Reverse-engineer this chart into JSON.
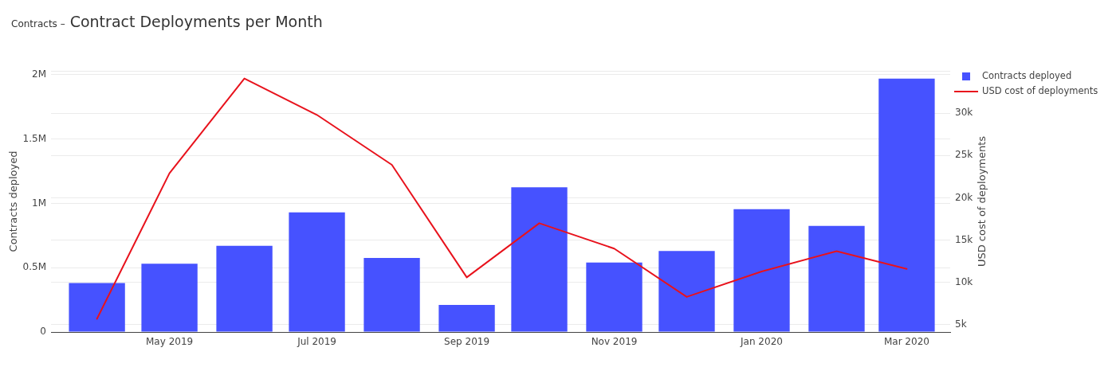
{
  "chart_data": {
    "type": "bar",
    "subtitle": "Contracts –",
    "title": "Contract Deployments per Month",
    "ylabel": "Contracts deployed",
    "y2label": "USD cost of deployments",
    "x": [
      "2019-04",
      "2019-05",
      "2019-06",
      "2019-07",
      "2019-08",
      "2019-09",
      "2019-10",
      "2019-11",
      "2019-12",
      "2020-01",
      "2020-02",
      "2020-03"
    ],
    "series": [
      {
        "name": "Contracts deployed",
        "color": "#4652ff",
        "values": [
          380000,
          530000,
          670000,
          930000,
          575000,
          210000,
          1125000,
          540000,
          630000,
          955000,
          825000,
          1970000
        ]
      },
      {
        "name": "USD cost of deployments",
        "type": "line",
        "axis": "y2",
        "color": "#e8121c",
        "values": [
          5700,
          22900,
          34100,
          29800,
          23900,
          10600,
          17000,
          14000,
          8300,
          11300,
          13700,
          11600
        ]
      }
    ],
    "xlim": [
      "2019-03-13",
      "2020-03-19"
    ],
    "xticks": [
      {
        "value": "2019-05",
        "label": "May 2019"
      },
      {
        "value": "2019-07",
        "label": "Jul 2019"
      },
      {
        "value": "2019-09",
        "label": "Sep 2019"
      },
      {
        "value": "2019-11",
        "label": "Nov 2019"
      },
      {
        "value": "2020-01",
        "label": "Jan 2020"
      },
      {
        "value": "2020-03",
        "label": "Mar 2020"
      }
    ],
    "ylim": [
      0,
      2030000
    ],
    "yticks": [
      0,
      {
        "value": 500000,
        "label": "0.5M"
      },
      {
        "value": 1000000,
        "label": "1M"
      },
      {
        "value": 1500000,
        "label": "1.5M"
      },
      {
        "value": 2000000,
        "label": "2M"
      }
    ],
    "y2lim": [
      4150,
      35000
    ],
    "y2ticks": [
      {
        "value": 5000,
        "label": "5k"
      },
      {
        "value": 10000,
        "label": "10k"
      },
      {
        "value": 15000,
        "label": "15k"
      },
      {
        "value": 20000,
        "label": "20k"
      },
      {
        "value": 25000,
        "label": "25k"
      },
      {
        "value": 30000,
        "label": "30k"
      },
      {
        "value": 35000,
        "label": null
      }
    ],
    "grid": "y",
    "legend": "top right"
  }
}
